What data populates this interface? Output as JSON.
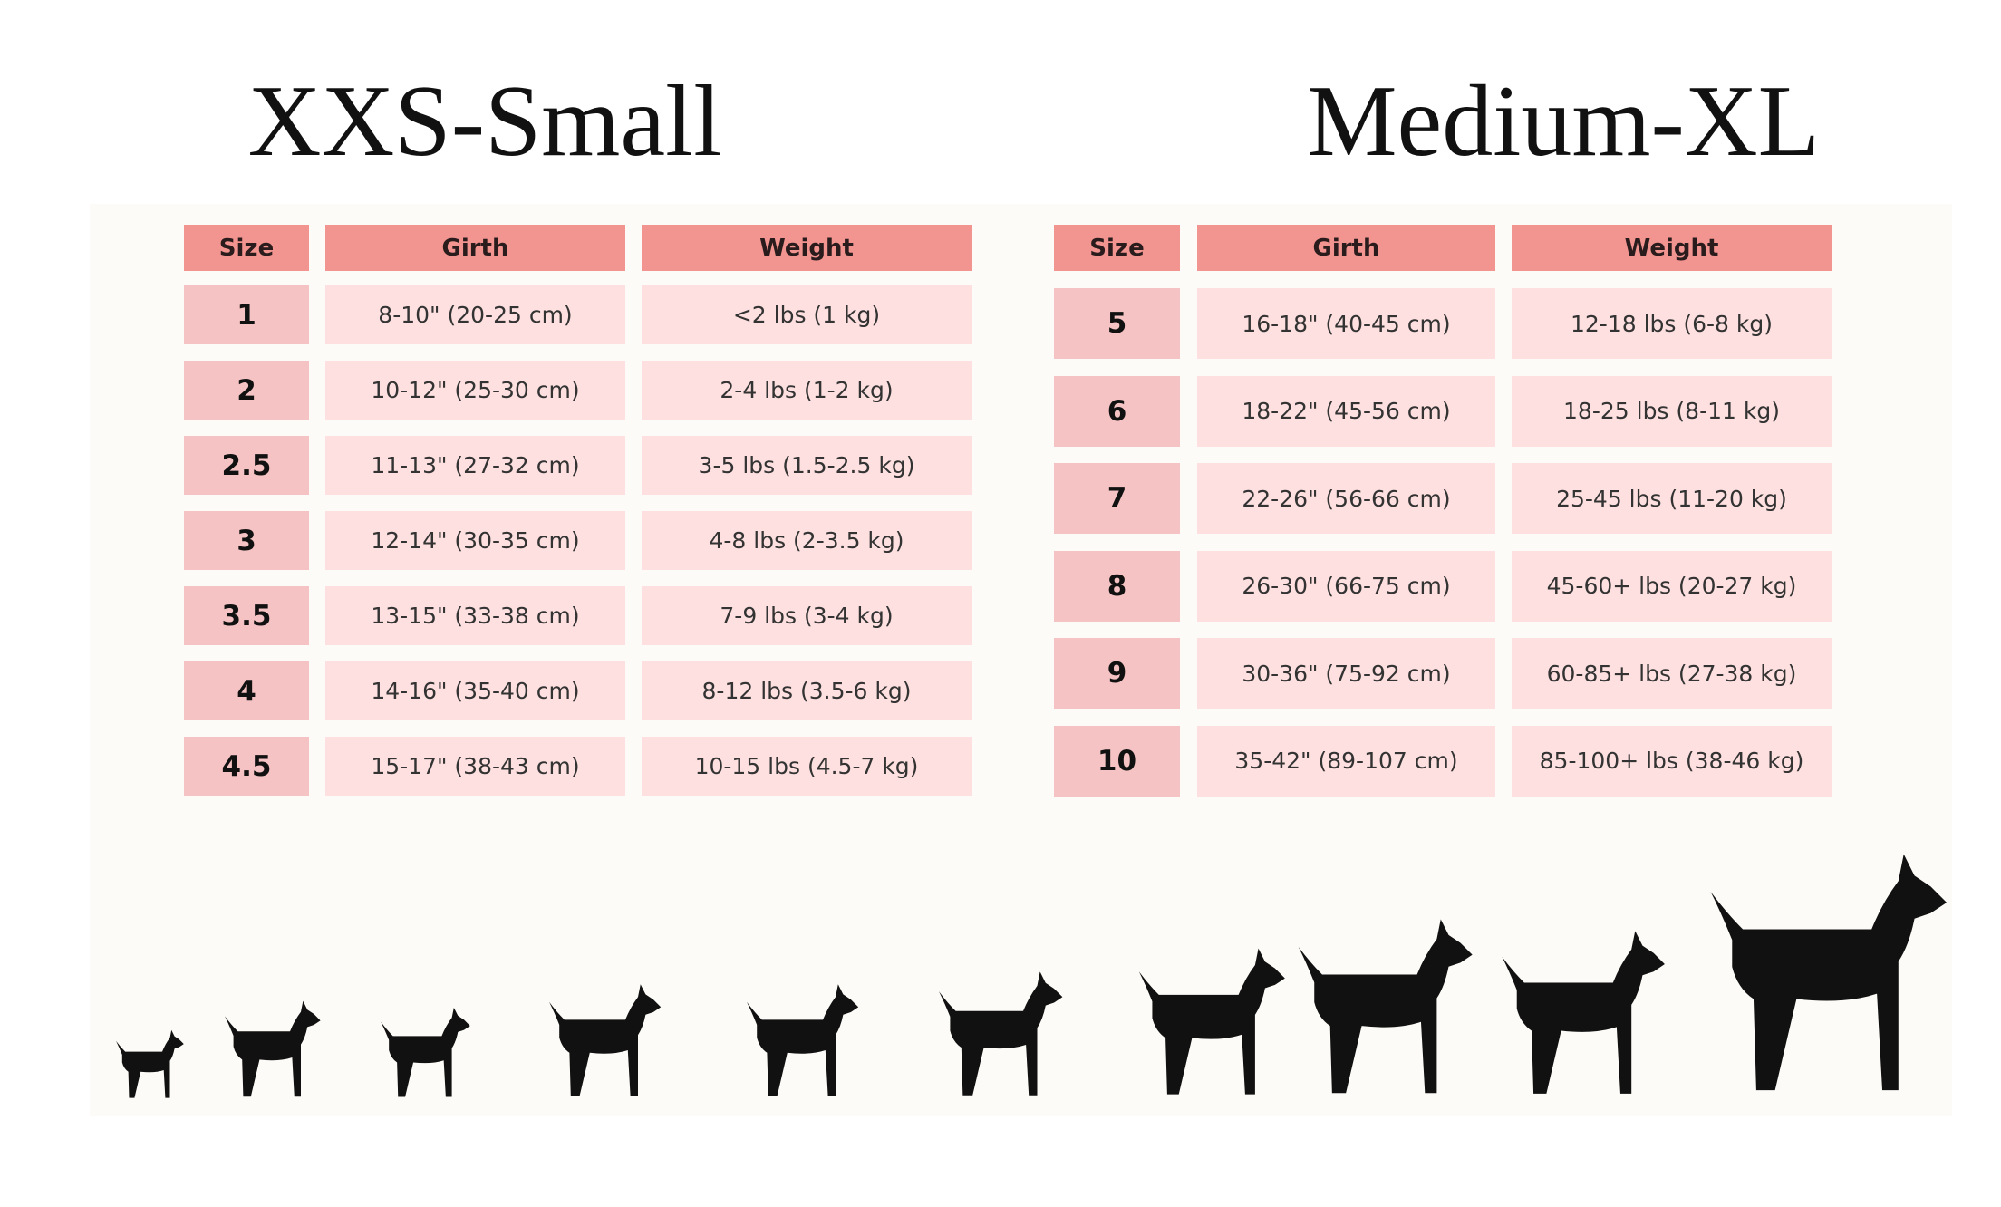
{
  "titles": [
    "XXS-Small",
    "Medium-XL"
  ],
  "tables": [
    {
      "header": [
        "Size",
        "Girth",
        "Weight"
      ],
      "rows": [
        [
          "1",
          "8-10\" (20-25 cm)",
          "<2 lbs (1 kg)"
        ],
        [
          "2",
          "10-12\" (25-30 cm)",
          "2-4 lbs (1-2 kg)"
        ],
        [
          "2.5",
          "11-13\" (27-32 cm)",
          "3-5 lbs (1.5-2.5 kg)"
        ],
        [
          "3",
          "12-14\" (30-35 cm)",
          "4-8 lbs (2-3.5 kg)"
        ],
        [
          "3.5",
          "13-15\" (33-38 cm)",
          "7-9 lbs (3-4 kg)"
        ],
        [
          "4",
          "14-16\" (35-40 cm)",
          "8-12 lbs (3.5-6 kg)"
        ],
        [
          "4.5",
          "15-17\" (38-43 cm)",
          "10-15 lbs (4.5-7 kg)"
        ]
      ]
    },
    {
      "header": [
        "Size",
        "Girth",
        "Weight"
      ],
      "rows": [
        [
          "5",
          "16-18\" (40-45 cm)",
          "12-18 lbs (6-8 kg)"
        ],
        [
          "6",
          "18-22\" (45-56 cm)",
          "18-25 lbs (8-11 kg)"
        ],
        [
          "7",
          "22-26\" (56-66 cm)",
          "25-45 lbs (11-20 kg)"
        ],
        [
          "8",
          "26-30\" (66-75 cm)",
          "45-60+ lbs (20-27 kg)"
        ],
        [
          "9",
          "30-36\" (75-92 cm)",
          "60-85+ lbs (27-38 kg)"
        ],
        [
          "10",
          "35-42\" (89-107 cm)",
          "85-100+ lbs (38-46 kg)"
        ]
      ]
    }
  ]
}
